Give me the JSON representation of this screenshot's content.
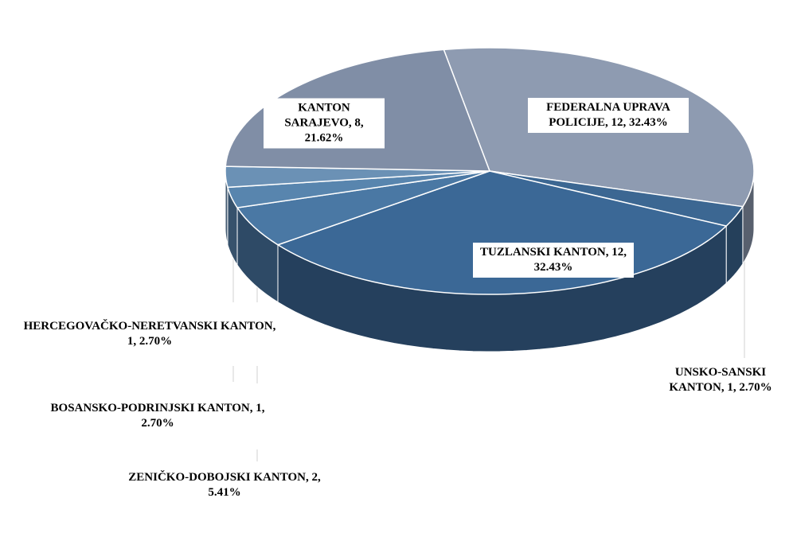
{
  "chart_data": {
    "type": "pie",
    "categories": [
      "FEDERALNA UPRAVA POLICIJE, 12, 32.43%",
      "UNSKO-SANSKI KANTON, 1, 2.70%",
      "TUZLANSKI KANTON, 12, 32.43%",
      "ZENIČKO-DOBOJSKI KANTON, 2, 5.41%",
      "BOSANSKO-PODRINJSKI KANTON, 1, 2.70%",
      "HERCEGOVAČKO-NERETVANSKI KANTON, 1, 2.70%",
      "KANTON SARAJEVO, 8, 21.62%"
    ],
    "values": [
      12,
      1,
      12,
      2,
      1,
      1,
      8
    ],
    "colors": [
      "#8e9bb1",
      "#3c6792",
      "#3b6896",
      "#4a78a4",
      "#5885ae",
      "#6b91b5",
      "#808ea6"
    ]
  }
}
